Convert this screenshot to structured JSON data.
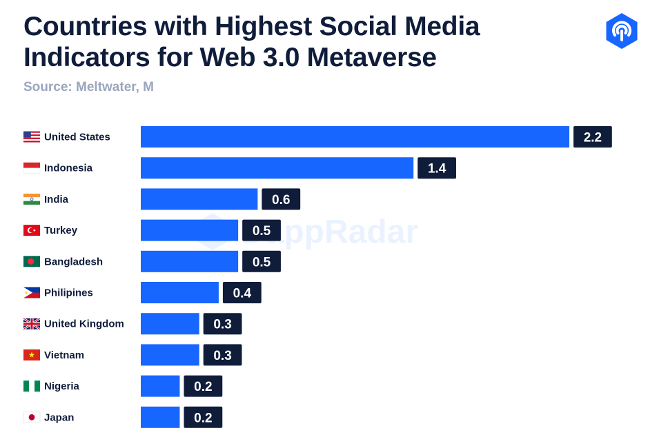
{
  "title": "Countries with Highest Social Media Indicators for Web 3.0 Metaverse",
  "subtitle": "Source: Meltwater, M",
  "watermark": "DappRadar",
  "colors": {
    "bar": "#1766ff",
    "label_bg": "#0f1c3a",
    "title": "#0f1c3a",
    "subtitle": "#9aa6bd"
  },
  "chart_data": {
    "type": "bar",
    "orientation": "horizontal",
    "title": "Countries with Highest Social Media Indicators for Web 3.0 Metaverse",
    "subtitle": "Source: Meltwater, M",
    "xlabel": "",
    "ylabel": "",
    "xlim": [
      0,
      2.2
    ],
    "grid": false,
    "categories": [
      "United States",
      "Indonesia",
      "India",
      "Turkey",
      "Bangladesh",
      "Philipines",
      "United Kingdom",
      "Vietnam",
      "Nigeria",
      "Japan"
    ],
    "values": [
      2.2,
      1.4,
      0.6,
      0.5,
      0.5,
      0.4,
      0.3,
      0.3,
      0.2,
      0.2
    ],
    "value_labels": [
      "2.2",
      "1.4",
      "0.6",
      "0.5",
      "0.5",
      "0.4",
      "0.3",
      "0.3",
      "0.2",
      "0.2"
    ],
    "flags": [
      "us-flag-icon",
      "indonesia-flag-icon",
      "india-flag-icon",
      "turkey-flag-icon",
      "bangladesh-flag-icon",
      "philippines-flag-icon",
      "uk-flag-icon",
      "vietnam-flag-icon",
      "nigeria-flag-icon",
      "japan-flag-icon"
    ]
  }
}
